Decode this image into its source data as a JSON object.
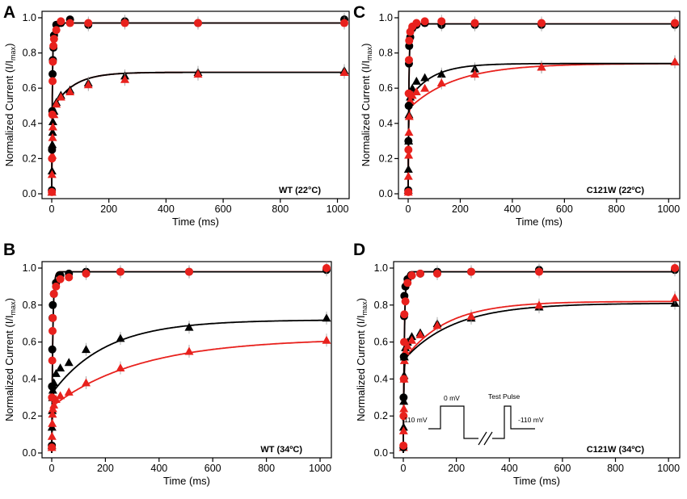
{
  "figure": {
    "colors": {
      "series_a": "#000000",
      "series_b": "#e8211d",
      "error_bar": "#999999"
    }
  },
  "inset": {
    "labels": [
      "-110 mV",
      "0 mV",
      "Test Pulse",
      "-110 mV"
    ]
  },
  "chart_data": [
    {
      "panel": "A",
      "type": "scatter",
      "condition_label": "WT (22°C)",
      "xlabel": "Time (ms)",
      "ylabel_main": "Normalized Current (I/I",
      "ylabel_sub": "max",
      "ylabel_close": ")",
      "xlim": [
        0,
        1024
      ],
      "ylim": [
        0,
        1.0
      ],
      "xticks": [
        0,
        200,
        400,
        600,
        800,
        1000
      ],
      "yticks": [
        0.0,
        0.2,
        0.4,
        0.6,
        0.8,
        1.0
      ],
      "fits": {
        "circle_amp": 0.97,
        "circle_tau": 2.5,
        "tri_fast_amp": 0.47,
        "tri_fast_tau": 1.5,
        "tri_slow_amp": 0.22,
        "tri_slow_tau": 70
      },
      "series": [
        {
          "name": "black circles",
          "color": "#000000",
          "marker": "circle",
          "x": [
            0.5,
            1,
            2,
            3,
            4,
            6,
            8,
            16,
            32,
            64,
            128,
            256,
            512,
            1024
          ],
          "y": [
            0.02,
            0.25,
            0.47,
            0.68,
            0.76,
            0.83,
            0.9,
            0.96,
            0.97,
            0.99,
            0.96,
            0.98,
            0.97,
            0.99
          ]
        },
        {
          "name": "red circles",
          "color": "#e8211d",
          "marker": "circle",
          "x": [
            0.5,
            1,
            2,
            3,
            4,
            6,
            8,
            16,
            32,
            64,
            128,
            256,
            512,
            1024
          ],
          "y": [
            0.01,
            0.2,
            0.45,
            0.64,
            0.75,
            0.84,
            0.88,
            0.93,
            0.98,
            0.97,
            0.97,
            0.97,
            0.97,
            0.97
          ]
        },
        {
          "name": "black triangles",
          "color": "#000000",
          "marker": "triangle",
          "x": [
            0.5,
            1,
            2,
            3,
            4,
            8,
            16,
            32,
            64,
            128,
            256,
            512,
            1024
          ],
          "y": [
            0.01,
            0.13,
            0.28,
            0.35,
            0.41,
            0.47,
            0.52,
            0.56,
            0.59,
            0.63,
            0.67,
            0.69,
            0.7
          ]
        },
        {
          "name": "red triangles",
          "color": "#e8211d",
          "marker": "triangle",
          "x": [
            0.5,
            1,
            2,
            3,
            4,
            8,
            16,
            32,
            64,
            128,
            256,
            512,
            1024
          ],
          "y": [
            0.01,
            0.11,
            0.22,
            0.32,
            0.38,
            0.45,
            0.51,
            0.55,
            0.58,
            0.62,
            0.65,
            0.68,
            0.69
          ]
        }
      ]
    },
    {
      "panel": "B",
      "type": "scatter",
      "condition_label": "WT (34ºC)",
      "xlabel": "Time (ms)",
      "ylabel_main": "Normalized Current (I/I",
      "ylabel_sub": "max",
      "ylabel_close": ")",
      "xlim": [
        0,
        1024
      ],
      "ylim": [
        0,
        1.0
      ],
      "xticks": [
        0,
        200,
        400,
        600,
        800,
        1000
      ],
      "yticks": [
        0.0,
        0.2,
        0.4,
        0.6,
        0.8,
        1.0
      ],
      "fits": {
        "circle_amp": 0.98,
        "circle_tau": 4,
        "tri_fast_amp": 0.32,
        "tri_fast_tau": 2,
        "tri_slow_amp": 0.4,
        "tri_slow_tau": 200,
        "tri2_fast_amp": 0.25,
        "tri2_fast_tau": 2,
        "tri2_slow_amp": 0.37,
        "tri2_slow_tau": 330
      },
      "series": [
        {
          "name": "black circles",
          "color": "#000000",
          "marker": "circle",
          "x": [
            0.5,
            1,
            2,
            3,
            4,
            8,
            16,
            32,
            64,
            128,
            256,
            512,
            1024
          ],
          "y": [
            0.04,
            0.36,
            0.56,
            0.73,
            0.8,
            0.86,
            0.92,
            0.96,
            0.97,
            0.98,
            0.98,
            0.98,
            0.99
          ]
        },
        {
          "name": "red circles",
          "color": "#e8211d",
          "marker": "circle",
          "x": [
            0.5,
            1,
            2,
            3,
            4,
            8,
            16,
            32,
            64,
            128,
            256,
            512,
            1024
          ],
          "y": [
            0.03,
            0.3,
            0.5,
            0.66,
            0.73,
            0.86,
            0.9,
            0.94,
            0.95,
            0.97,
            0.98,
            0.98,
            1.0
          ]
        },
        {
          "name": "black triangles",
          "color": "#000000",
          "marker": "triangle",
          "x": [
            0.5,
            1,
            2,
            3,
            4,
            8,
            16,
            32,
            64,
            128,
            256,
            512,
            1024
          ],
          "y": [
            0.04,
            0.14,
            0.23,
            0.3,
            0.34,
            0.38,
            0.43,
            0.46,
            0.49,
            0.56,
            0.62,
            0.68,
            0.73
          ]
        },
        {
          "name": "red triangles",
          "color": "#e8211d",
          "marker": "triangle",
          "x": [
            0.5,
            1,
            2,
            3,
            4,
            8,
            16,
            32,
            64,
            128,
            256,
            512,
            1024
          ],
          "y": [
            0.03,
            0.09,
            0.16,
            0.21,
            0.24,
            0.26,
            0.29,
            0.31,
            0.33,
            0.38,
            0.46,
            0.55,
            0.61
          ]
        }
      ]
    },
    {
      "panel": "C",
      "type": "scatter",
      "condition_label": "C121W (22ºC)",
      "xlabel": "Time (ms)",
      "ylabel_main": "Normalized Current (I/I",
      "ylabel_sub": "max",
      "ylabel_close": ")",
      "xlim": [
        0,
        1024
      ],
      "ylim": [
        0,
        1.0
      ],
      "xticks": [
        0,
        200,
        400,
        600,
        800,
        1000
      ],
      "yticks": [
        0.0,
        0.2,
        0.4,
        0.6,
        0.8,
        1.0
      ],
      "fits": {
        "circle_amp": 0.965,
        "circle_tau": 3,
        "tri_fast_amp": 0.53,
        "tri_fast_tau": 1.6,
        "tri_slow_amp": 0.21,
        "tri_slow_tau": 90,
        "tri2_fast_amp": 0.48,
        "tri2_fast_tau": 1.6,
        "tri2_slow_amp": 0.26,
        "tri2_slow_tau": 180
      },
      "series": [
        {
          "name": "black circles",
          "color": "#000000",
          "marker": "circle",
          "x": [
            0.5,
            1,
            2,
            3,
            4,
            8,
            16,
            32,
            64,
            128,
            256,
            512,
            1024
          ],
          "y": [
            0.02,
            0.3,
            0.5,
            0.74,
            0.84,
            0.89,
            0.94,
            0.96,
            0.97,
            0.96,
            0.96,
            0.96,
            0.96
          ]
        },
        {
          "name": "red circles",
          "color": "#e8211d",
          "marker": "circle",
          "x": [
            0.5,
            1,
            2,
            3,
            4,
            8,
            16,
            32,
            64,
            128,
            256,
            512,
            1024
          ],
          "y": [
            0.01,
            0.25,
            0.57,
            0.76,
            0.87,
            0.92,
            0.95,
            0.97,
            0.98,
            0.98,
            0.97,
            0.97,
            0.97
          ]
        },
        {
          "name": "black triangles",
          "color": "#000000",
          "marker": "triangle",
          "x": [
            0.5,
            1,
            2,
            3,
            4,
            8,
            16,
            32,
            64,
            128,
            256,
            512,
            1024
          ],
          "y": [
            0.02,
            0.14,
            0.3,
            0.45,
            0.52,
            0.55,
            0.6,
            0.64,
            0.66,
            0.68,
            0.71,
            0.72,
            0.75
          ]
        },
        {
          "name": "red triangles",
          "color": "#e8211d",
          "marker": "triangle",
          "x": [
            0.5,
            1,
            2,
            3,
            4,
            8,
            16,
            32,
            64,
            128,
            256,
            512,
            1024
          ],
          "y": [
            0.01,
            0.1,
            0.22,
            0.35,
            0.44,
            0.53,
            0.56,
            0.58,
            0.6,
            0.63,
            0.68,
            0.72,
            0.75
          ]
        }
      ]
    },
    {
      "panel": "D",
      "type": "scatter",
      "condition_label": "C121W (34ºC)",
      "xlabel": "Time (ms)",
      "ylabel_main": "Normalized Current (I/I",
      "ylabel_sub": "max",
      "ylabel_close": ")",
      "xlim": [
        0,
        1024
      ],
      "ylim": [
        0,
        1.0
      ],
      "xticks": [
        0,
        200,
        400,
        600,
        800,
        1000
      ],
      "yticks": [
        0.0,
        0.2,
        0.4,
        0.6,
        0.8,
        1.0
      ],
      "fits": {
        "circle_amp": 0.98,
        "circle_tau": 4,
        "tri_fast_amp": 0.5,
        "tri_fast_tau": 2,
        "tri_slow_amp": 0.31,
        "tri_slow_tau": 190,
        "tri2_fast_amp": 0.5,
        "tri2_fast_tau": 2,
        "tri2_slow_amp": 0.32,
        "tri2_slow_tau": 160
      },
      "series": [
        {
          "name": "black circles",
          "color": "#000000",
          "marker": "circle",
          "x": [
            0.5,
            1,
            2,
            3,
            4,
            8,
            16,
            32,
            64,
            128,
            256,
            512,
            1024
          ],
          "y": [
            0.03,
            0.3,
            0.52,
            0.74,
            0.85,
            0.9,
            0.94,
            0.96,
            0.97,
            0.98,
            0.98,
            0.99,
            0.99
          ]
        },
        {
          "name": "red circles",
          "color": "#e8211d",
          "marker": "circle",
          "x": [
            0.5,
            1,
            2,
            3,
            4,
            8,
            16,
            32,
            64,
            128,
            256,
            512,
            1024
          ],
          "y": [
            0.04,
            0.2,
            0.4,
            0.6,
            0.75,
            0.82,
            0.92,
            0.96,
            0.97,
            0.97,
            0.98,
            0.98,
            1.0
          ]
        },
        {
          "name": "black triangles",
          "color": "#000000",
          "marker": "triangle",
          "x": [
            0.5,
            1,
            2,
            3,
            4,
            8,
            16,
            32,
            64,
            128,
            256,
            512,
            1024
          ],
          "y": [
            0.03,
            0.14,
            0.28,
            0.42,
            0.52,
            0.57,
            0.6,
            0.63,
            0.65,
            0.7,
            0.73,
            0.79,
            0.81
          ]
        },
        {
          "name": "red triangles",
          "color": "#e8211d",
          "marker": "triangle",
          "x": [
            0.5,
            1,
            2,
            3,
            4,
            8,
            16,
            32,
            64,
            128,
            256,
            512,
            1024
          ],
          "y": [
            0.03,
            0.12,
            0.24,
            0.4,
            0.5,
            0.55,
            0.58,
            0.61,
            0.64,
            0.69,
            0.74,
            0.8,
            0.84
          ]
        }
      ]
    }
  ]
}
